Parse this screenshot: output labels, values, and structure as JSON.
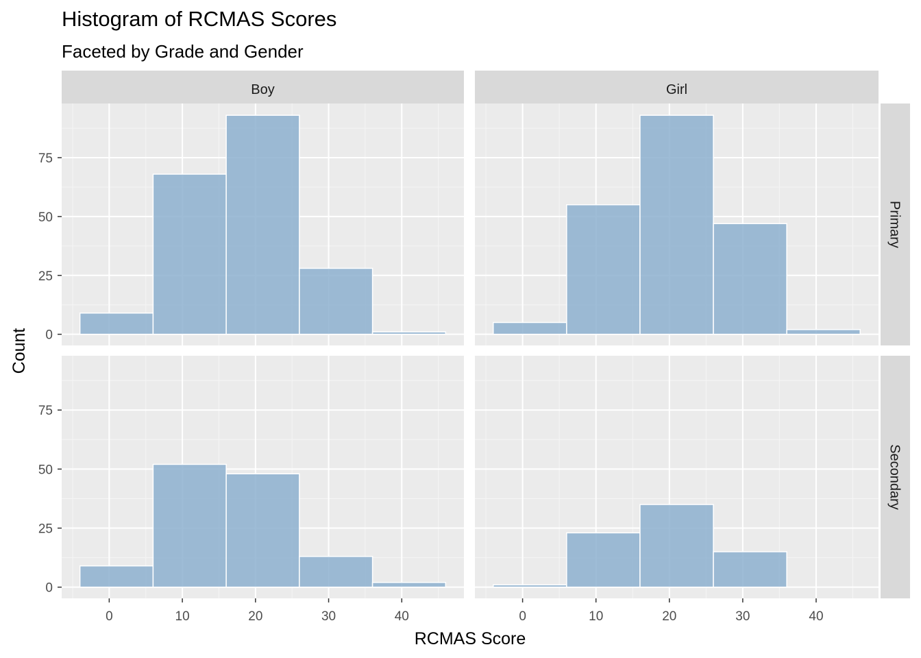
{
  "chart_data": {
    "type": "histogram",
    "title": "Histogram of RCMAS Scores",
    "subtitle": "Faceted by Grade and Gender",
    "xlabel": "RCMAS Score",
    "ylabel": "Count",
    "xlim": [
      -6.5,
      48.5
    ],
    "ylim": [
      -4.75,
      98
    ],
    "x_ticks": [
      0,
      10,
      20,
      30,
      40
    ],
    "y_ticks": [
      0,
      25,
      50,
      75
    ],
    "bin_width": 10,
    "bin_edges": [
      -4,
      6,
      16,
      26,
      36,
      46
    ],
    "grid": true,
    "fill_color": "#8db0cf",
    "bar_outline_color": "#ffffff",
    "panel_background": "#ebebeb",
    "strip_background": "#d9d9d9",
    "columns": [
      "Boy",
      "Girl"
    ],
    "rows": [
      "Primary",
      "Secondary"
    ],
    "panels": [
      {
        "column": "Boy",
        "row": "Primary",
        "counts": [
          9,
          68,
          93,
          28,
          1
        ]
      },
      {
        "column": "Girl",
        "row": "Primary",
        "counts": [
          5,
          55,
          93,
          47,
          2
        ]
      },
      {
        "column": "Boy",
        "row": "Secondary",
        "counts": [
          9,
          52,
          48,
          13,
          2
        ]
      },
      {
        "column": "Girl",
        "row": "Secondary",
        "counts": [
          1,
          23,
          35,
          15,
          0
        ]
      }
    ]
  }
}
